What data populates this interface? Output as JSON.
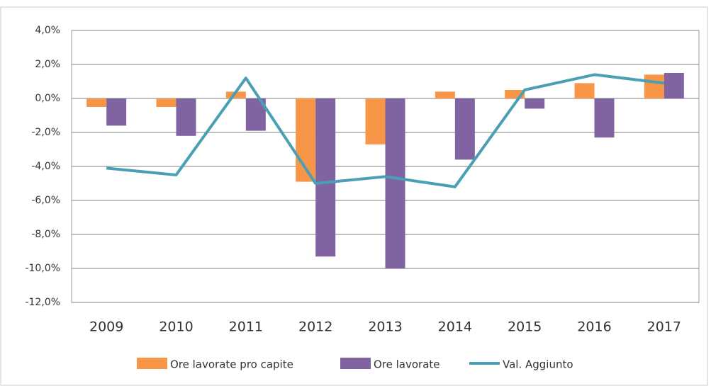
{
  "chart_data": {
    "type": "bar",
    "categories": [
      "2009",
      "2010",
      "2011",
      "2012",
      "2013",
      "2014",
      "2015",
      "2016",
      "2017"
    ],
    "series": [
      {
        "name": "Ore lavorate pro capite",
        "color": "#f79646",
        "values": [
          -0.5,
          -0.5,
          0.4,
          -4.9,
          -2.7,
          0.4,
          0.5,
          0.9,
          1.4
        ]
      },
      {
        "name": "Ore lavorate",
        "color": "#8064a2",
        "values": [
          -1.6,
          -2.2,
          -1.9,
          -9.3,
          -10.0,
          -3.6,
          -0.6,
          -2.3,
          1.5
        ]
      },
      {
        "name": "Val. Aggiunto",
        "color": "#4a9fb5",
        "type": "line",
        "values": [
          -4.1,
          -4.5,
          1.2,
          -5.0,
          -4.6,
          -5.2,
          0.5,
          1.4,
          0.9
        ]
      }
    ],
    "ylim": [
      -12,
      4
    ],
    "yticks": [
      {
        "value": 4,
        "label": "4,0%"
      },
      {
        "value": 2,
        "label": "2,0%"
      },
      {
        "value": 0,
        "label": "0,0%"
      },
      {
        "value": -2,
        "label": "-2,0%"
      },
      {
        "value": -4,
        "label": "-4,0%"
      },
      {
        "value": -6,
        "label": "-6,0%"
      },
      {
        "value": -8,
        "label": "-8,0%"
      },
      {
        "value": -10,
        "label": "-10,0%"
      },
      {
        "value": -12,
        "label": "-12,0%"
      }
    ],
    "grid": true,
    "legend": "bottom"
  }
}
